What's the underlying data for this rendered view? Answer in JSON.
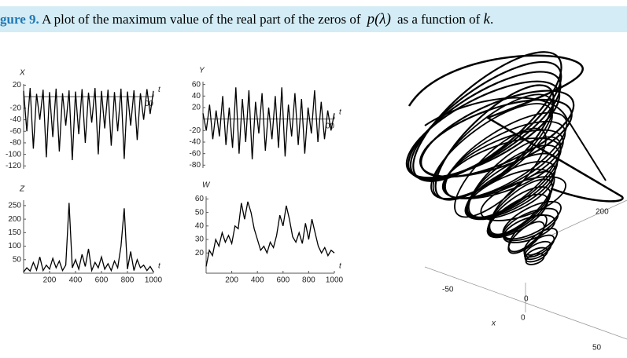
{
  "caption": {
    "label": "gure 9.",
    "text_before": "A plot of the maximum value of the real part of the zeros of",
    "math": "p(λ)",
    "text_after": "as a function of",
    "var": "k",
    "end": "."
  },
  "chart_data": [
    {
      "type": "line",
      "ylabel": "X",
      "xlabel": "t",
      "color": "#000",
      "x": [
        0,
        25,
        50,
        75,
        100,
        125,
        150,
        175,
        200,
        225,
        250,
        275,
        300,
        325,
        350,
        375,
        400,
        425,
        450,
        475,
        500,
        525,
        550,
        575,
        600,
        625,
        650,
        675,
        700,
        725,
        750,
        775,
        800,
        825,
        850,
        875,
        900,
        925,
        950,
        975,
        1000
      ],
      "values": [
        10,
        -60,
        15,
        -90,
        5,
        -40,
        12,
        -105,
        8,
        -70,
        14,
        -95,
        6,
        -50,
        11,
        -110,
        9,
        -65,
        13,
        -80,
        7,
        -45,
        15,
        -100,
        10,
        -55,
        12,
        -85,
        8,
        -60,
        14,
        -108,
        9,
        -50,
        11,
        -75,
        6,
        -40,
        13,
        -30,
        10
      ],
      "xlim": [
        0,
        1000
      ],
      "xticks": [
        {
          "value": 1000,
          "label": "00"
        }
      ],
      "ylim": [
        -125,
        22
      ],
      "yticks": [
        20,
        -20,
        -40,
        -60,
        -80,
        -100,
        -120
      ]
    },
    {
      "type": "line",
      "ylabel": "Y",
      "xlabel": "t",
      "color": "#000",
      "x": [
        0,
        25,
        50,
        75,
        100,
        125,
        150,
        175,
        200,
        225,
        250,
        275,
        300,
        325,
        350,
        375,
        400,
        425,
        450,
        475,
        500,
        525,
        550,
        575,
        600,
        625,
        650,
        675,
        700,
        725,
        750,
        775,
        800,
        825,
        850,
        875,
        900,
        925,
        950,
        975,
        1000
      ],
      "values": [
        10,
        -20,
        25,
        -35,
        15,
        -30,
        40,
        -45,
        20,
        -50,
        55,
        -60,
        35,
        -40,
        50,
        -70,
        30,
        -25,
        45,
        -55,
        20,
        -35,
        40,
        -50,
        55,
        -65,
        25,
        -30,
        45,
        -45,
        35,
        -60,
        20,
        -25,
        50,
        -40,
        30,
        -35,
        15,
        -20,
        10
      ],
      "xlim": [
        0,
        1000
      ],
      "xticks": [
        {
          "value": 1000,
          "label": "00"
        }
      ],
      "ylim": [
        -85,
        65
      ],
      "yticks": [
        60,
        40,
        20,
        -20,
        -40,
        -60,
        -80
      ]
    },
    {
      "type": "line",
      "ylabel": "Z",
      "xlabel": "t",
      "color": "#000",
      "x": [
        0,
        25,
        50,
        75,
        100,
        125,
        150,
        175,
        200,
        225,
        250,
        275,
        300,
        325,
        350,
        375,
        400,
        425,
        450,
        475,
        500,
        525,
        550,
        575,
        600,
        625,
        650,
        675,
        700,
        725,
        750,
        775,
        800,
        825,
        850,
        875,
        900,
        925,
        950,
        975,
        1000
      ],
      "values": [
        5,
        20,
        8,
        40,
        12,
        60,
        10,
        30,
        15,
        55,
        20,
        45,
        10,
        30,
        260,
        20,
        50,
        15,
        70,
        25,
        90,
        10,
        40,
        20,
        60,
        15,
        35,
        10,
        45,
        20,
        100,
        240,
        15,
        80,
        10,
        50,
        20,
        30,
        10,
        25,
        5
      ],
      "xlim": [
        0,
        1000
      ],
      "xticks": [
        200,
        400,
        600,
        800,
        1000
      ],
      "ylim": [
        0,
        270
      ],
      "yticks": [
        250,
        200,
        150,
        100,
        50
      ]
    },
    {
      "type": "line",
      "ylabel": "W",
      "xlabel": "t",
      "color": "#000",
      "x": [
        0,
        25,
        50,
        75,
        100,
        125,
        150,
        175,
        200,
        225,
        250,
        275,
        300,
        325,
        350,
        375,
        400,
        425,
        450,
        475,
        500,
        525,
        550,
        575,
        600,
        625,
        650,
        675,
        700,
        725,
        750,
        775,
        800,
        825,
        850,
        875,
        900,
        925,
        950,
        975,
        1000
      ],
      "values": [
        10,
        22,
        18,
        30,
        25,
        35,
        28,
        33,
        27,
        40,
        38,
        57,
        45,
        58,
        50,
        38,
        30,
        22,
        25,
        20,
        28,
        24,
        33,
        48,
        40,
        55,
        45,
        32,
        28,
        35,
        27,
        42,
        30,
        45,
        35,
        25,
        20,
        24,
        18,
        22,
        20
      ],
      "xlim": [
        0,
        1000
      ],
      "xticks": [
        200,
        400,
        600,
        800,
        1000
      ],
      "ylim": [
        5,
        62
      ],
      "yticks": [
        60,
        50,
        40,
        30,
        20
      ]
    }
  ],
  "plot3d": {
    "tick_z": "200",
    "tick_y": "-50",
    "tick_o1": "0",
    "tick_o2": "0",
    "xlabel": "x",
    "tick_x": "50"
  }
}
